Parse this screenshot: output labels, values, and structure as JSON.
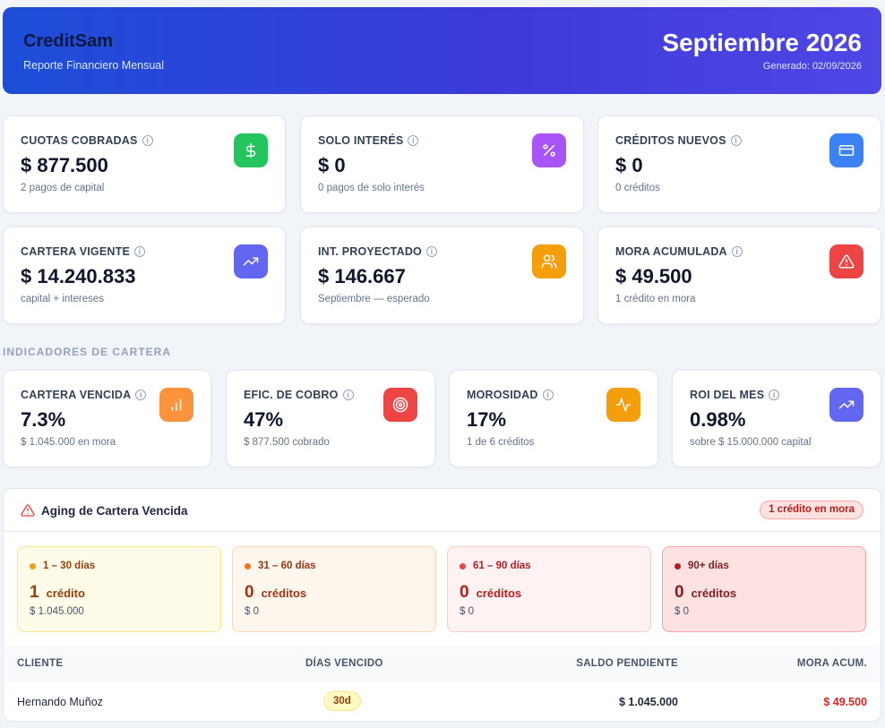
{
  "header": {
    "brand": "CreditSam",
    "subtitle": "Reporte Financiero Mensual",
    "period": "Septiembre 2026",
    "generated": "Generado: 02/09/2026"
  },
  "kpis": [
    {
      "label": "CUOTAS COBRADAS",
      "value": "$ 877.500",
      "sub": "2 pagos de capital",
      "icon": "dollar-icon",
      "color": "#22c55e"
    },
    {
      "label": "SOLO INTERÉS",
      "value": "$ 0",
      "sub": "0 pagos de solo interés",
      "icon": "percent-icon",
      "color": "#a855f7"
    },
    {
      "label": "CRÉDITOS NUEVOS",
      "value": "$ 0",
      "sub": "0 créditos",
      "icon": "credit-card-icon",
      "color": "#3b82f6"
    },
    {
      "label": "CARTERA VIGENTE",
      "value": "$ 14.240.833",
      "sub": "capital + intereses",
      "icon": "trending-up-icon",
      "color": "#6366f1"
    },
    {
      "label": "INT. PROYECTADO",
      "value": "$ 146.667",
      "sub": "Septiembre — esperado",
      "icon": "users-icon",
      "color": "#f59e0b"
    },
    {
      "label": "MORA ACUMULADA",
      "value": "$ 49.500",
      "sub": "1 crédito en mora",
      "icon": "alert-triangle-icon",
      "color": "#ef4444"
    }
  ],
  "indicators_title": "INDICADORES DE CARTERA",
  "indicators": [
    {
      "label": "CARTERA VENCIDA",
      "value": "7.3%",
      "sub": "$ 1.045.000 en mora",
      "icon": "bar-chart-icon",
      "color": "#fb923c"
    },
    {
      "label": "EFIC. DE COBRO",
      "value": "47%",
      "sub": "$ 877.500 cobrado",
      "icon": "target-icon",
      "color": "#ef4444"
    },
    {
      "label": "MOROSIDAD",
      "value": "17%",
      "sub": "1 de 6 créditos",
      "icon": "activity-icon",
      "color": "#f59e0b"
    },
    {
      "label": "ROI DEL MES",
      "value": "0.98%",
      "sub": "sobre $ 15.000.000 capital",
      "icon": "trending-up-icon",
      "color": "#6366f1"
    }
  ],
  "aging": {
    "title": "Aging de Cartera Vencida",
    "badge": "1 crédito en mora",
    "buckets": [
      {
        "label": "1 – 30 días",
        "count": "1",
        "unit": "crédito",
        "amount": "$ 1.045.000",
        "bg": "#fefce8",
        "border": "#fde68a",
        "dot": "#f59e0b",
        "text": "#92400e"
      },
      {
        "label": "31 – 60 días",
        "count": "0",
        "unit": "créditos",
        "amount": "$ 0",
        "bg": "#fff7ed",
        "border": "#fed7aa",
        "dot": "#f97316",
        "text": "#9a3412"
      },
      {
        "label": "61 – 90 días",
        "count": "0",
        "unit": "créditos",
        "amount": "$ 0",
        "bg": "#fef2f2",
        "border": "#fecaca",
        "dot": "#ef4444",
        "text": "#b91c1c"
      },
      {
        "label": "90+ días",
        "count": "0",
        "unit": "créditos",
        "amount": "$ 0",
        "bg": "#fee2e2",
        "border": "#fca5a5",
        "dot": "#b91c1c",
        "text": "#7f1d1d"
      }
    ],
    "columns": [
      "CLIENTE",
      "DÍAS VENCIDO",
      "SALDO PENDIENTE",
      "MORA ACUM."
    ],
    "rows": [
      {
        "client": "Hernando Muñoz",
        "days": "30d",
        "balance": "$ 1.045.000",
        "mora": "$ 49.500"
      }
    ]
  }
}
